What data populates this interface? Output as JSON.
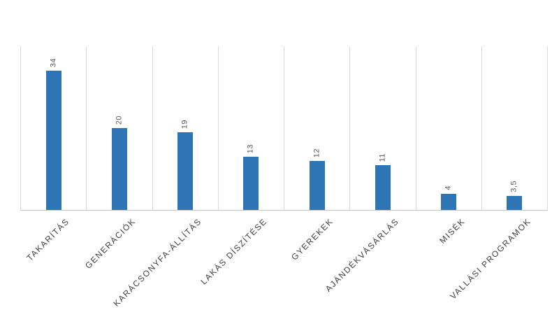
{
  "chart_data": {
    "type": "bar",
    "categories": [
      "TAKARÍTÁS",
      "GENERÁCIÓK",
      "KARÁCSONYFA-ÁLLÍTÁS",
      "LAKÁS DÍSZÍTÉSE",
      "GYEREKEK",
      "AJÁNDÉKVÁSÁRLÁS",
      "MISÉK",
      "VALLÁSI PROGRAMOK"
    ],
    "values": [
      34,
      20,
      19,
      13,
      12,
      11,
      4,
      3.5
    ],
    "value_labels": [
      "34",
      "20",
      "19",
      "13",
      "12",
      "11",
      "4",
      "3,5"
    ],
    "title": "",
    "xlabel": "",
    "ylabel": "",
    "ylim": [
      0,
      40
    ],
    "grid": "vertical-category-separators",
    "legend": "none",
    "value_label_rotation_deg": -90,
    "category_label_rotation_deg": -45,
    "colors": {
      "bar": "#2e75b6",
      "gridline": "#d9d9d9",
      "axis_line": "#c6c6c6",
      "value_label_text": "#595959",
      "category_label_text": "#404040",
      "background": "#ffffff"
    }
  }
}
